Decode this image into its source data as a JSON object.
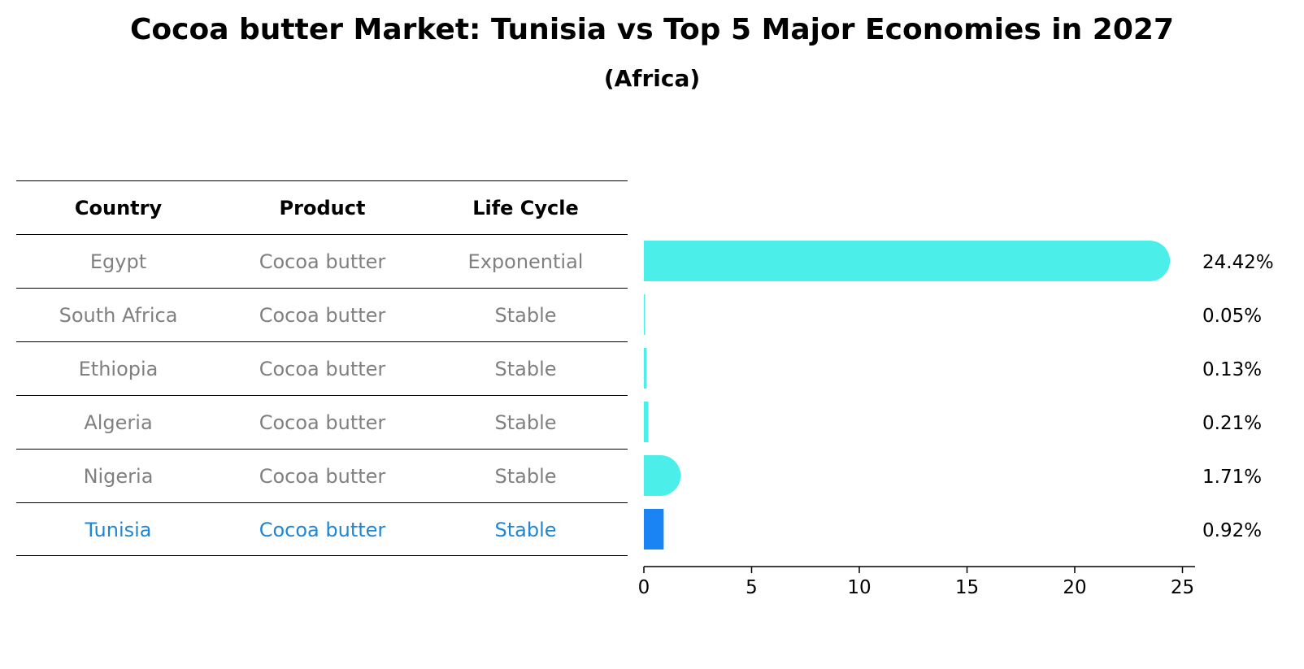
{
  "title": "Cocoa butter Market: Tunisia vs Top 5 Major Economies in 2027",
  "subtitle": "(Africa)",
  "table": {
    "headers": [
      "Country",
      "Product",
      "Life Cycle"
    ],
    "rows": [
      {
        "country": "Egypt",
        "product": "Cocoa butter",
        "life_cycle": "Exponential"
      },
      {
        "country": "South Africa",
        "product": "Cocoa butter",
        "life_cycle": "Stable"
      },
      {
        "country": "Ethiopia",
        "product": "Cocoa butter",
        "life_cycle": "Stable"
      },
      {
        "country": "Algeria",
        "product": "Cocoa butter",
        "life_cycle": "Stable"
      },
      {
        "country": "Nigeria",
        "product": "Cocoa butter",
        "life_cycle": "Stable"
      },
      {
        "country": "Tunisia",
        "product": "Cocoa butter",
        "life_cycle": "Stable"
      }
    ]
  },
  "colors": {
    "bar": "#4ceee9",
    "highlight_bar": "#1a84f4",
    "highlight_text": "#1f86d6",
    "table_text": "#808080"
  },
  "chart_data": {
    "type": "bar",
    "orientation": "horizontal",
    "categories": [
      "Egypt",
      "South Africa",
      "Ethiopia",
      "Algeria",
      "Nigeria",
      "Tunisia"
    ],
    "values": [
      24.42,
      0.05,
      0.13,
      0.21,
      1.71,
      0.92
    ],
    "value_labels": [
      "24.42%",
      "0.05%",
      "0.13%",
      "0.21%",
      "1.71%",
      "0.92%"
    ],
    "highlight": "Tunisia",
    "xlim": [
      0,
      25.5
    ],
    "xticks": [
      0,
      5,
      10,
      15,
      20,
      25
    ],
    "title": "Cocoa butter Market: Tunisia vs Top 5 Major Economies in 2027",
    "subtitle": "(Africa)",
    "grid": false,
    "legend": "none"
  }
}
